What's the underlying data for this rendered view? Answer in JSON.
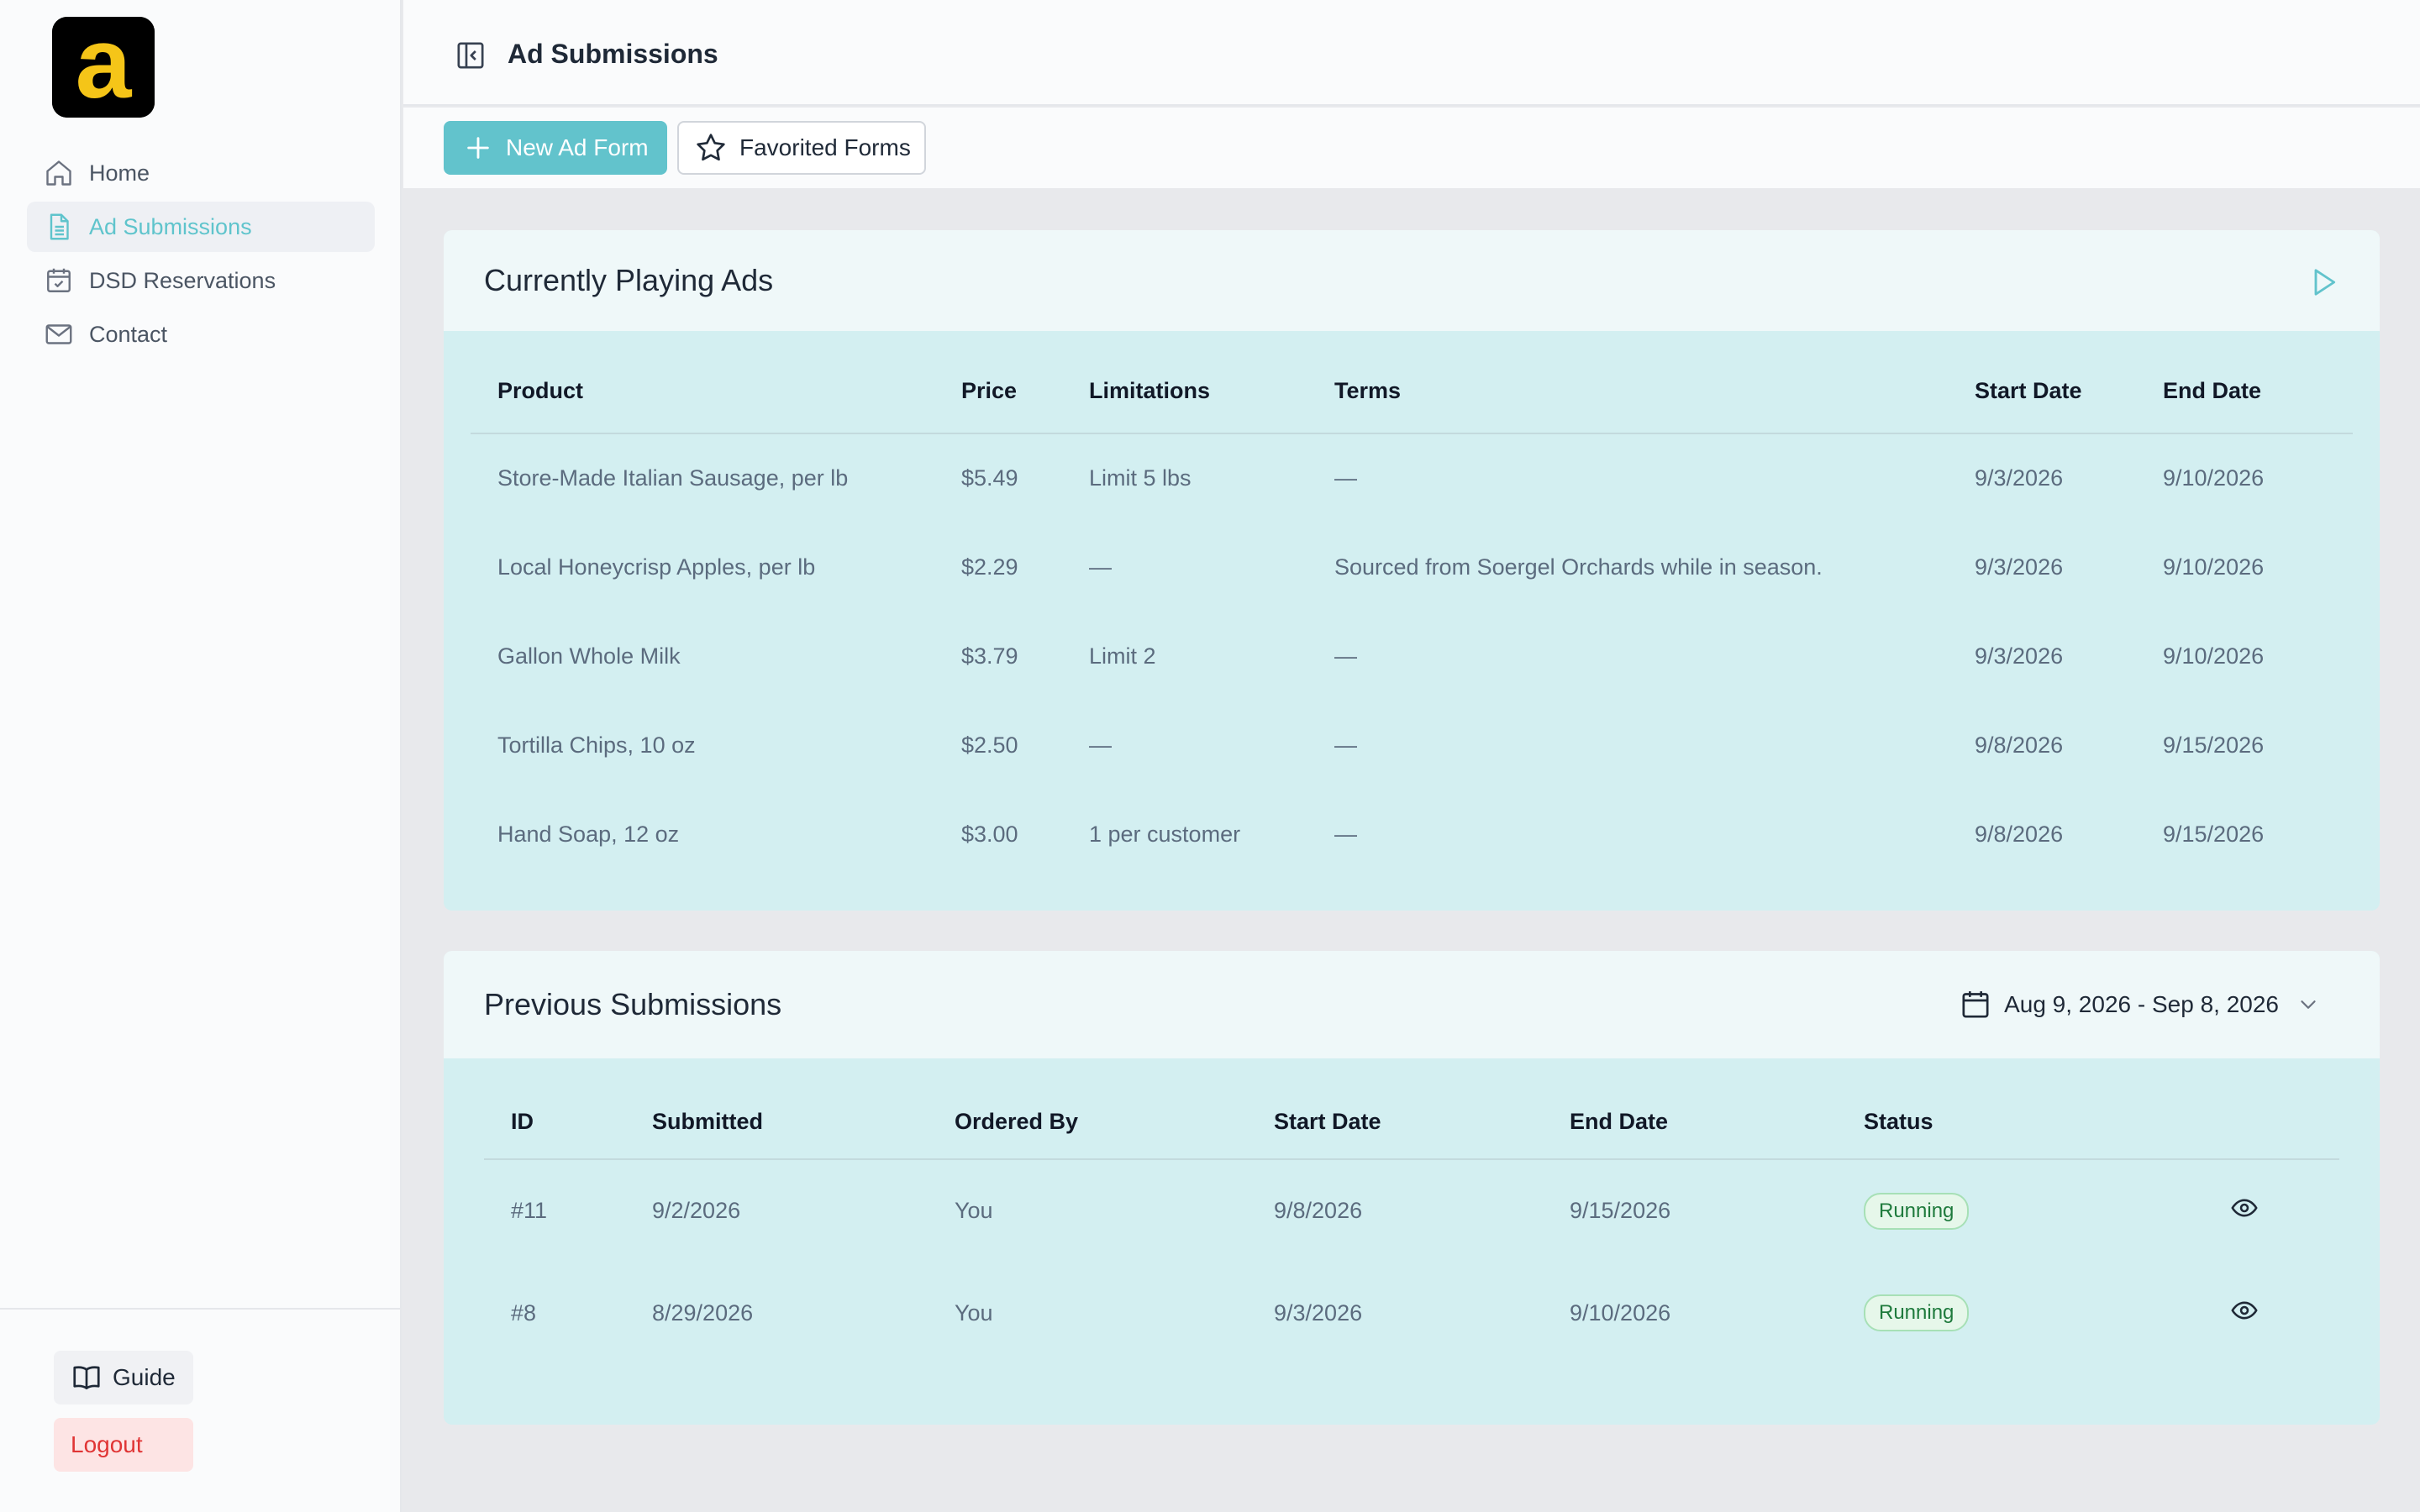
{
  "sidebar": {
    "logo_letter": "a",
    "items": [
      {
        "label": "Home",
        "icon": "home-icon"
      },
      {
        "label": "Ad Submissions",
        "icon": "document-icon"
      },
      {
        "label": "DSD Reservations",
        "icon": "calendar-check-icon"
      },
      {
        "label": "Contact",
        "icon": "mail-icon"
      }
    ],
    "active_index": 1,
    "guide_label": "Guide",
    "logout_label": "Logout"
  },
  "header": {
    "title": "Ad Submissions"
  },
  "toolbar": {
    "new_label": "New Ad Form",
    "favorited_label": "Favorited Forms"
  },
  "current": {
    "title": "Currently Playing Ads",
    "columns": [
      "Product",
      "Price",
      "Limitations",
      "Terms",
      "Start Date",
      "End Date"
    ],
    "rows": [
      [
        "Store-Made Italian Sausage, per lb",
        "$5.49",
        "Limit 5 lbs",
        "—",
        "9/3/2026",
        "9/10/2026"
      ],
      [
        "Local Honeycrisp Apples, per lb",
        "$2.29",
        "—",
        "Sourced from Soergel Orchards while in season.",
        "9/3/2026",
        "9/10/2026"
      ],
      [
        "Gallon Whole Milk",
        "$3.79",
        "Limit 2",
        "—",
        "9/3/2026",
        "9/10/2026"
      ],
      [
        "Tortilla Chips, 10 oz",
        "$2.50",
        "—",
        "—",
        "9/8/2026",
        "9/15/2026"
      ],
      [
        "Hand Soap, 12 oz",
        "$3.00",
        "1 per customer",
        "—",
        "9/8/2026",
        "9/15/2026"
      ]
    ]
  },
  "previous": {
    "title": "Previous Submissions",
    "date_range": "Aug 9, 2026 - Sep 8, 2026",
    "columns": [
      "ID",
      "Submitted",
      "Ordered By",
      "Start Date",
      "End Date",
      "Status",
      ""
    ],
    "rows": [
      [
        "#11",
        "9/2/2026",
        "You",
        "9/8/2026",
        "9/15/2026",
        "Running"
      ],
      [
        "#8",
        "8/29/2026",
        "You",
        "9/3/2026",
        "9/10/2026",
        "Running"
      ]
    ]
  },
  "colors": {
    "accent": "#62c3cc",
    "logo_yellow": "#f5c518",
    "logout_red": "#e03535",
    "card_bg": "#d3eff1"
  }
}
